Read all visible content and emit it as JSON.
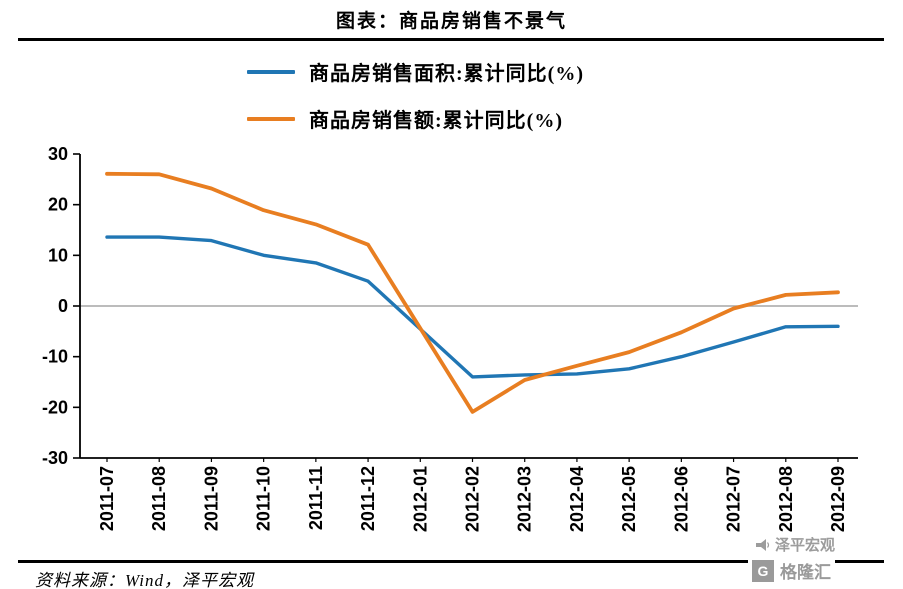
{
  "title": "图表：商品房销售不景气",
  "source": {
    "text": "资料来源：Wind，泽平宏观"
  },
  "watermarks": {
    "zeping": "泽平宏观",
    "gelonghui": "格隆汇",
    "gelonghui_initial": "G"
  },
  "colors": {
    "series_area_blue": "#2076B4",
    "series_value_orange": "#E87E21",
    "zero_line_gray": "#A6A6A6",
    "axis_black": "#000000",
    "watermark_gray": "#9C9C9C"
  },
  "chart_data": {
    "type": "line",
    "title": "图表：商品房销售不景气",
    "categories": [
      "2011-07",
      "2011-08",
      "2011-09",
      "2011-10",
      "2011-11",
      "2011-12",
      "2012-01",
      "2012-02",
      "2012-03",
      "2012-04",
      "2012-05",
      "2012-06",
      "2012-07",
      "2012-08",
      "2012-09"
    ],
    "series": [
      {
        "name": "商品房销售面积:累计同比(%)",
        "color": "#2076B4",
        "values": [
          13.6,
          13.6,
          12.9,
          10.0,
          8.5,
          4.9,
          null,
          -14.0,
          -13.6,
          -13.4,
          -12.4,
          -10.0,
          -7.1,
          -4.1,
          -4.0
        ]
      },
      {
        "name": "商品房销售额:累计同比(%)",
        "color": "#E87E21",
        "values": [
          26.1,
          26.0,
          23.2,
          18.9,
          16.1,
          12.1,
          null,
          -20.9,
          -14.6,
          -11.8,
          -9.1,
          -5.2,
          -0.5,
          2.2,
          2.7
        ]
      }
    ],
    "xlabel": "",
    "ylabel": "",
    "ylim": [
      -30,
      30
    ],
    "ytick_step": 10,
    "grid": "zero-line-only",
    "zero_line_color": "#A6A6A6",
    "legend_position": "top",
    "x_label_rotation": 90,
    "note": "2012-01 has no data point; lines connect 2011-12 directly to 2012-02"
  }
}
